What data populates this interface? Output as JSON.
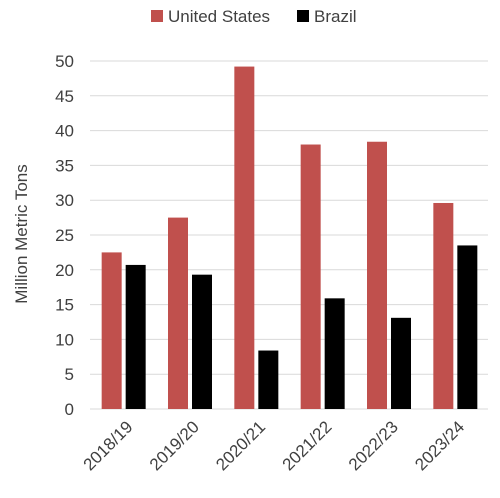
{
  "chart_data": {
    "type": "bar",
    "title": "",
    "xlabel": "",
    "ylabel": "Million Metric Tons",
    "ylim": [
      0,
      50
    ],
    "yticks": [
      0,
      5,
      10,
      15,
      20,
      25,
      30,
      35,
      40,
      45,
      50
    ],
    "grid": true,
    "legend_position": "top",
    "categories": [
      "2018/19",
      "2019/20",
      "2020/21",
      "2021/22",
      "2022/23",
      "2023/24"
    ],
    "series": [
      {
        "name": "United States",
        "color": "#c0504d",
        "values": [
          22.5,
          27.5,
          49.2,
          38.0,
          38.4,
          29.6
        ]
      },
      {
        "name": "Brazil",
        "color": "#000000",
        "values": [
          20.7,
          19.3,
          8.4,
          15.9,
          13.1,
          23.5
        ]
      }
    ]
  }
}
